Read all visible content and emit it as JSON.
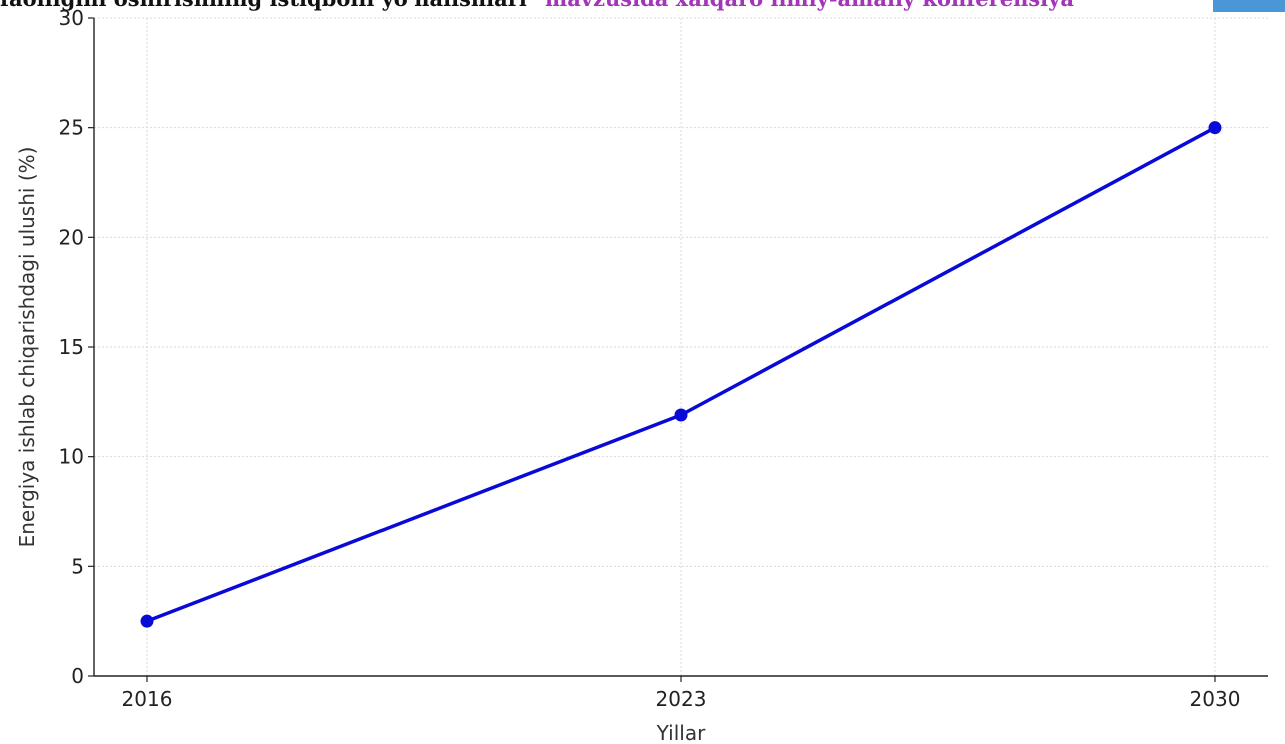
{
  "banner": {
    "dark_text": "faolligini oshirishning istiqbolli yo'nalishlari\"",
    "purple_text": " mavzusida xalqaro ilmiy-amaliy konferensiya",
    "purple_color": "#a235b8",
    "accent_color": "#4a96d6"
  },
  "chart_data": {
    "type": "line",
    "title": "",
    "xlabel": "Yillar",
    "ylabel": "Energiya ishlab chiqarishdagi ulushi (%)",
    "x": [
      2016,
      2023,
      2030
    ],
    "series": [
      {
        "values": [
          2.5,
          11.9,
          25
        ],
        "color": "#0a0ad8",
        "marker": "circle"
      }
    ],
    "xticks": [
      "2016",
      "2023",
      "2030"
    ],
    "yticks": [
      "0",
      "5",
      "10",
      "15",
      "20",
      "25",
      "30"
    ],
    "ylim": [
      0,
      30
    ],
    "grid": true
  }
}
